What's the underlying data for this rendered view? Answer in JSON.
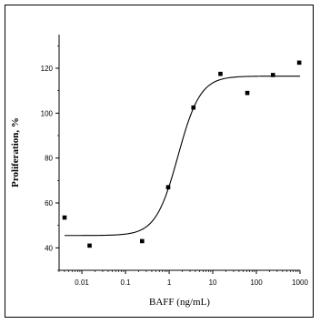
{
  "chart_data": {
    "type": "scatter",
    "xlabel": "BAFF (ng/mL)",
    "ylabel": "Proliferation, %",
    "xscale": "log",
    "xlim": [
      0.003,
      1000
    ],
    "ylim": [
      30,
      135
    ],
    "x_ticks": [
      0.01,
      0.1,
      1,
      10,
      100,
      1000
    ],
    "x_tick_labels": [
      "0.01",
      "0.1",
      "1",
      "10",
      "100",
      "1000"
    ],
    "y_ticks": [
      40,
      60,
      80,
      100,
      120
    ],
    "y_tick_labels": [
      "40",
      "60",
      "80",
      "100",
      "120"
    ],
    "points": [
      {
        "x": 0.004,
        "y": 53.5
      },
      {
        "x": 0.015,
        "y": 41.0
      },
      {
        "x": 0.24,
        "y": 43.0
      },
      {
        "x": 0.95,
        "y": 67.0
      },
      {
        "x": 3.6,
        "y": 102.5
      },
      {
        "x": 15,
        "y": 117.5
      },
      {
        "x": 62,
        "y": 109.0
      },
      {
        "x": 240,
        "y": 117.0
      },
      {
        "x": 960,
        "y": 122.5
      }
    ],
    "fit": {
      "bottom": 45.5,
      "top": 116.5,
      "ec50": 1.6,
      "hill": 1.7
    },
    "grid": false,
    "legend": "none"
  }
}
